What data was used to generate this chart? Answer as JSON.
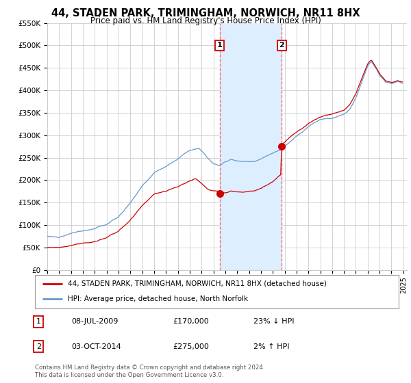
{
  "title_line1": "44, STADEN PARK, TRIMINGHAM, NORWICH, NR11 8HX",
  "title_line2": "Price paid vs. HM Land Registry's House Price Index (HPI)",
  "x_start_year": 1995,
  "x_end_year": 2025,
  "y_min": 0,
  "y_max": 550000,
  "y_ticks": [
    0,
    50000,
    100000,
    150000,
    200000,
    250000,
    300000,
    350000,
    400000,
    450000,
    500000,
    550000
  ],
  "y_tick_labels": [
    "£0",
    "£50K",
    "£100K",
    "£150K",
    "£200K",
    "£250K",
    "£300K",
    "£350K",
    "£400K",
    "£450K",
    "£500K",
    "£550K"
  ],
  "hpi_color": "#6699cc",
  "price_color": "#cc0000",
  "sale1_date": "08-JUL-2009",
  "sale1_year": 2009.52,
  "sale1_price": 170000,
  "sale1_label": "1",
  "sale1_pct": "23% ↓ HPI",
  "sale2_date": "03-OCT-2014",
  "sale2_year": 2014.75,
  "sale2_price": 275000,
  "sale2_label": "2",
  "sale2_pct": "2% ↑ HPI",
  "shade_color": "#ddeeff",
  "vline_color": "#ff6666",
  "legend1": "44, STADEN PARK, TRIMINGHAM, NORWICH, NR11 8HX (detached house)",
  "legend2": "HPI: Average price, detached house, North Norfolk",
  "footnote": "Contains HM Land Registry data © Crown copyright and database right 2024.\nThis data is licensed under the Open Government Licence v3.0.",
  "grid_color": "#cccccc",
  "background_color": "#ffffff"
}
